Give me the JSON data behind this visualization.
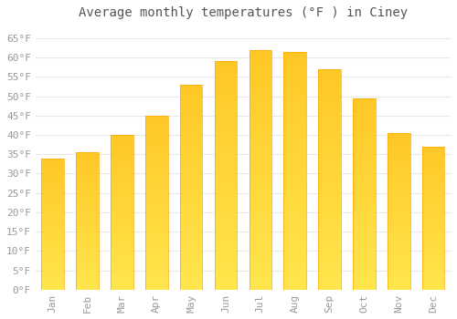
{
  "title": "Average monthly temperatures (°F ) in Ciney",
  "months": [
    "Jan",
    "Feb",
    "Mar",
    "Apr",
    "May",
    "Jun",
    "Jul",
    "Aug",
    "Sep",
    "Oct",
    "Nov",
    "Dec"
  ],
  "values": [
    34,
    35.5,
    40,
    45,
    53,
    59,
    62,
    61.5,
    57,
    49.5,
    40.5,
    37
  ],
  "bar_color_top": "#FFC125",
  "bar_color_bottom": "#FFD966",
  "bar_edge_color": "#FFA500",
  "background_color": "#FFFFFF",
  "grid_color": "#E8E8E8",
  "ytick_labels": [
    "0°F",
    "5°F",
    "10°F",
    "15°F",
    "20°F",
    "25°F",
    "30°F",
    "35°F",
    "40°F",
    "45°F",
    "50°F",
    "55°F",
    "60°F",
    "65°F"
  ],
  "ytick_values": [
    0,
    5,
    10,
    15,
    20,
    25,
    30,
    35,
    40,
    45,
    50,
    55,
    60,
    65
  ],
  "ylim": [
    0,
    68
  ],
  "title_fontsize": 10,
  "tick_fontsize": 8,
  "label_color": "#999999",
  "title_color": "#555555",
  "bar_width": 0.65
}
